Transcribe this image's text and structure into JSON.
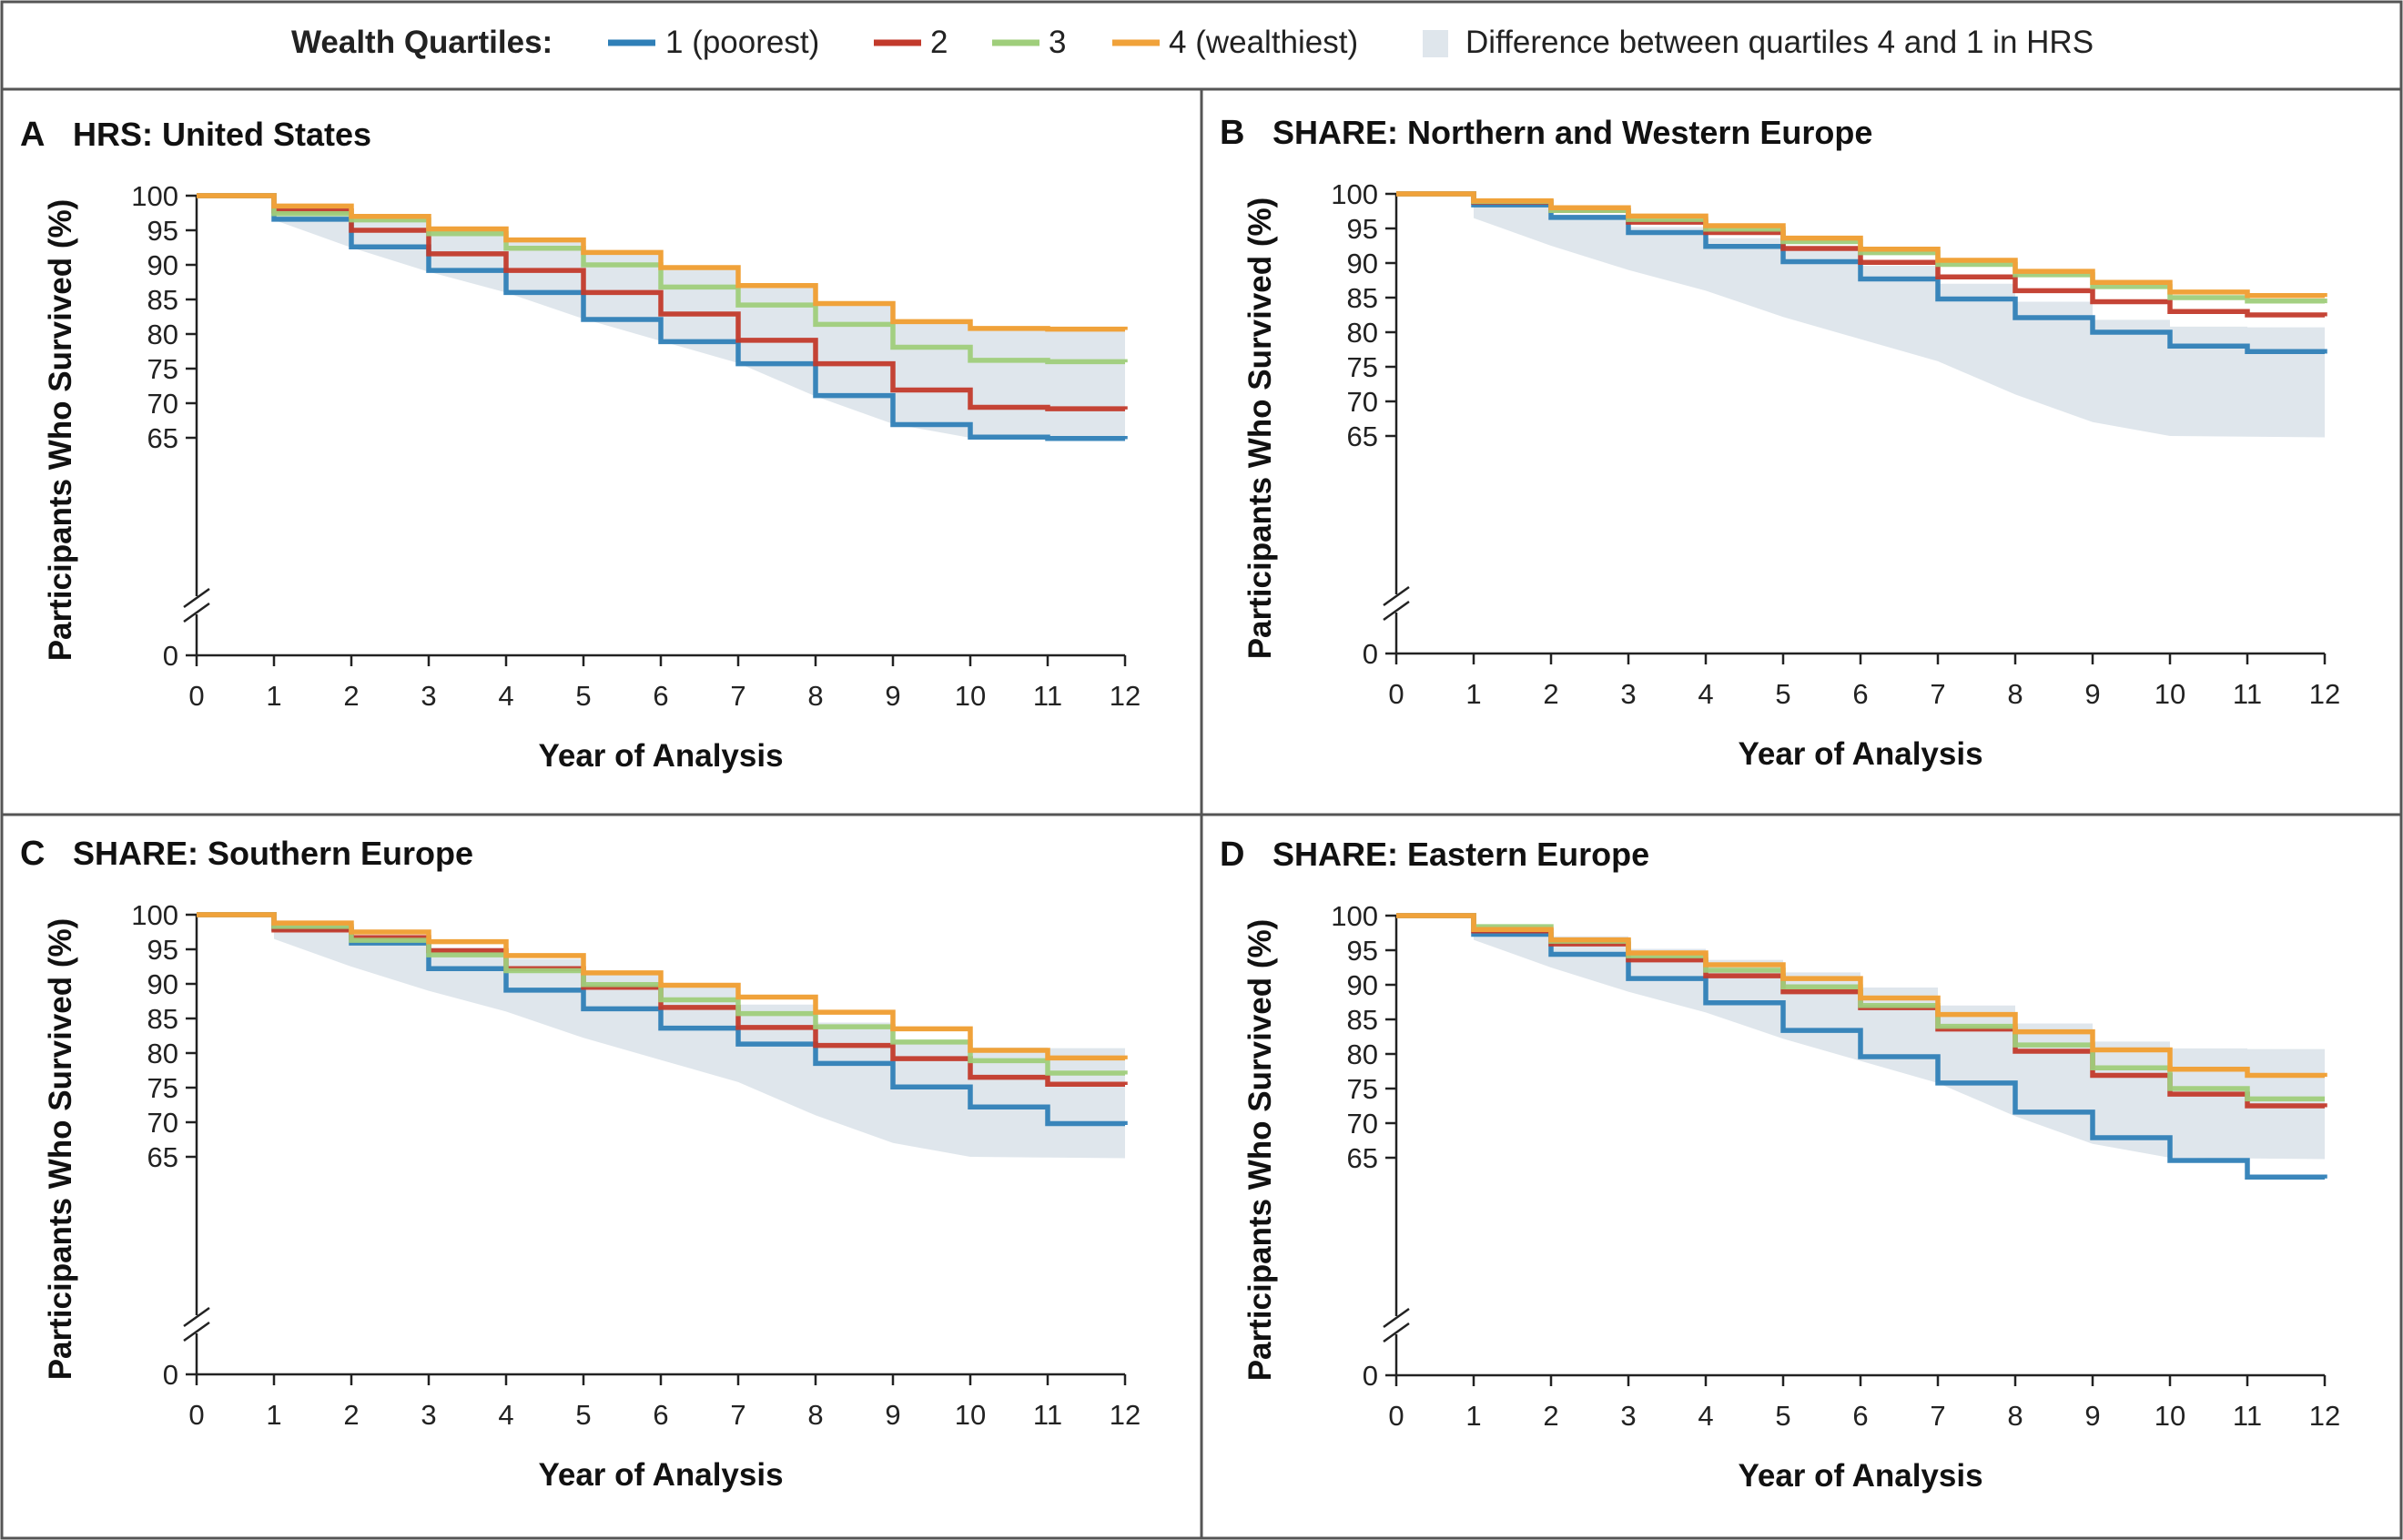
{
  "legend": {
    "title": "Wealth Quartiles:",
    "items": [
      {
        "label": "1 (poorest)",
        "color": "#2f7fb7"
      },
      {
        "label": "2",
        "color": "#c23a2b"
      },
      {
        "label": "3",
        "color": "#9fce7b"
      },
      {
        "label": "4 (wealthiest)",
        "color": "#f0a23a"
      }
    ],
    "band_label": "Difference between quartiles 4 and 1 in HRS",
    "band_color": "#dfe6ec"
  },
  "chart_data": [
    {
      "type": "line",
      "step": true,
      "letter": "A",
      "title": "HRS: United States",
      "xlabel": "Year of Analysis",
      "ylabel": "Participants Who Survived (%)",
      "x_ticks": [
        0,
        1,
        2,
        3,
        4,
        5,
        6,
        7,
        8,
        9,
        10,
        11,
        12
      ],
      "y_ticks": [
        0,
        65,
        70,
        75,
        80,
        85,
        90,
        95,
        100
      ],
      "xlim": [
        0,
        12
      ],
      "ylim_broken": [
        65,
        100
      ],
      "x": [
        0,
        1,
        2,
        3,
        4,
        5,
        6,
        7,
        8,
        9,
        10,
        11,
        12
      ],
      "band": {
        "upper": [
          100,
          98.5,
          97,
          95.2,
          93.6,
          91.8,
          89.6,
          87,
          84.4,
          81.8,
          80.8,
          80.7,
          80.6
        ],
        "lower": [
          100,
          96.5,
          92.5,
          89,
          86,
          82.2,
          79,
          75.8,
          71,
          67,
          65,
          64.9,
          64.8
        ]
      },
      "series": [
        {
          "name": "1 (poorest)",
          "values": [
            100,
            96.6,
            92.6,
            89.2,
            86,
            82.1,
            78.9,
            75.7,
            71.1,
            66.9,
            65.1,
            64.9,
            64.8
          ]
        },
        {
          "name": "2",
          "values": [
            100,
            97.8,
            95,
            91.6,
            89.2,
            86,
            82.9,
            79.1,
            75.7,
            71.9,
            69.4,
            69.2,
            69.1
          ]
        },
        {
          "name": "3",
          "values": [
            100,
            97.4,
            96.5,
            94.5,
            92.4,
            90,
            86.8,
            84.2,
            81.4,
            78.1,
            76.2,
            76.0,
            75.9
          ]
        },
        {
          "name": "4 (wealthiest)",
          "values": [
            100,
            98.5,
            97,
            95.2,
            93.6,
            91.8,
            89.6,
            87,
            84.4,
            81.8,
            80.8,
            80.7,
            80.6
          ]
        }
      ]
    },
    {
      "type": "line",
      "step": true,
      "letter": "B",
      "title": "SHARE: Northern and Western Europe",
      "xlabel": "Year of Analysis",
      "ylabel": "Participants Who Survived (%)",
      "x_ticks": [
        0,
        1,
        2,
        3,
        4,
        5,
        6,
        7,
        8,
        9,
        10,
        11,
        12
      ],
      "y_ticks": [
        0,
        65,
        70,
        75,
        80,
        85,
        90,
        95,
        100
      ],
      "xlim": [
        0,
        12
      ],
      "ylim_broken": [
        65,
        100
      ],
      "x": [
        0,
        1,
        2,
        3,
        4,
        5,
        6,
        7,
        8,
        9,
        10,
        11,
        12
      ],
      "band": {
        "upper": [
          100,
          98.5,
          97,
          95.2,
          93.6,
          91.8,
          89.6,
          87,
          84.4,
          81.8,
          80.8,
          80.7,
          80.6
        ],
        "lower": [
          100,
          96.5,
          92.5,
          89,
          86,
          82.2,
          79,
          75.8,
          71,
          67,
          65,
          64.9,
          64.8
        ]
      },
      "series": [
        {
          "name": "1 (poorest)",
          "values": [
            100,
            98.4,
            96.6,
            94.4,
            92.4,
            90.2,
            87.7,
            84.8,
            82.1,
            80,
            78,
            77.2,
            76.9
          ]
        },
        {
          "name": "2",
          "values": [
            100,
            98.8,
            97.6,
            95.9,
            94.4,
            92.1,
            90.1,
            88,
            86,
            84.4,
            83,
            82.5,
            82.3
          ]
        },
        {
          "name": "3",
          "values": [
            100,
            98.9,
            97.6,
            96.3,
            94.9,
            93.1,
            91.5,
            89.8,
            88.3,
            86.6,
            85,
            84.5,
            84.2
          ]
        },
        {
          "name": "4 (wealthiest)",
          "values": [
            100,
            99,
            98,
            96.8,
            95.4,
            93.6,
            92,
            90.4,
            88.8,
            87.2,
            85.8,
            85.3,
            85.1
          ]
        }
      ]
    },
    {
      "type": "line",
      "step": true,
      "letter": "C",
      "title": "SHARE: Southern Europe",
      "xlabel": "Year of Analysis",
      "ylabel": "Participants Who Survived (%)",
      "x_ticks": [
        0,
        1,
        2,
        3,
        4,
        5,
        6,
        7,
        8,
        9,
        10,
        11,
        12
      ],
      "y_ticks": [
        0,
        65,
        70,
        75,
        80,
        85,
        90,
        95,
        100
      ],
      "xlim": [
        0,
        12
      ],
      "ylim_broken": [
        65,
        100
      ],
      "x": [
        0,
        1,
        2,
        3,
        4,
        5,
        6,
        7,
        8,
        9,
        10,
        11,
        12
      ],
      "band": {
        "upper": [
          100,
          98.5,
          97,
          95.2,
          93.6,
          91.8,
          89.6,
          87,
          84.4,
          81.8,
          80.8,
          80.7,
          80.6
        ],
        "lower": [
          100,
          96.5,
          92.5,
          89,
          86,
          82.2,
          79,
          75.8,
          71,
          67,
          65,
          64.9,
          64.8
        ]
      },
      "series": [
        {
          "name": "1 (poorest)",
          "values": [
            100,
            98,
            95.9,
            92.2,
            89.1,
            86.4,
            83.6,
            81.3,
            78.5,
            75.1,
            72.2,
            69.8,
            69.6
          ]
        },
        {
          "name": "2",
          "values": [
            100,
            97.8,
            96.7,
            94.8,
            92.2,
            89.5,
            86.6,
            83.7,
            81.1,
            79.2,
            76.5,
            75.5,
            75.4
          ]
        },
        {
          "name": "3",
          "values": [
            100,
            98.3,
            96.3,
            94.2,
            91.9,
            89.9,
            87.7,
            85.7,
            83.8,
            81.6,
            78.9,
            77.1,
            76.9
          ]
        },
        {
          "name": "4 (wealthiest)",
          "values": [
            100,
            98.8,
            97.5,
            96.1,
            94.1,
            91.6,
            89.8,
            88.1,
            85.9,
            83.5,
            80.4,
            79.3,
            79.1
          ]
        }
      ]
    },
    {
      "type": "line",
      "step": true,
      "letter": "D",
      "title": "SHARE: Eastern Europe",
      "xlabel": "Year of Analysis",
      "ylabel": "Participants Who Survived (%)",
      "x_ticks": [
        0,
        1,
        2,
        3,
        4,
        5,
        6,
        7,
        8,
        9,
        10,
        11,
        12
      ],
      "y_ticks": [
        0,
        65,
        70,
        75,
        80,
        85,
        90,
        95,
        100
      ],
      "xlim": [
        0,
        12
      ],
      "ylim_broken": [
        65,
        100
      ],
      "x": [
        0,
        1,
        2,
        3,
        4,
        5,
        6,
        7,
        8,
        9,
        10,
        11,
        12
      ],
      "band": {
        "upper": [
          100,
          98.5,
          97,
          95.2,
          93.6,
          91.8,
          89.6,
          87,
          84.4,
          81.8,
          80.8,
          80.7,
          80.6
        ],
        "lower": [
          100,
          96.5,
          92.5,
          89,
          86,
          82.2,
          79,
          75.8,
          71,
          67,
          65,
          64.9,
          64.8
        ]
      },
      "series": [
        {
          "name": "1 (poorest)",
          "values": [
            100,
            97.3,
            94.4,
            90.9,
            87.4,
            83.4,
            79.6,
            75.8,
            71.6,
            67.9,
            64.6,
            62.2,
            62
          ]
        },
        {
          "name": "2",
          "values": [
            100,
            97.8,
            95.9,
            93.6,
            91.3,
            89,
            86.7,
            83.6,
            80.4,
            76.9,
            74.2,
            72.5,
            72.3
          ]
        },
        {
          "name": "3",
          "values": [
            100,
            98.4,
            96.3,
            94.2,
            92.1,
            89.7,
            87,
            84,
            81.3,
            78,
            75,
            73.5,
            73.5
          ]
        },
        {
          "name": "4 (wealthiest)",
          "values": [
            100,
            98,
            96.5,
            94.6,
            92.9,
            90.9,
            88.1,
            85.7,
            83.2,
            80.6,
            77.8,
            76.9,
            76.7
          ]
        }
      ]
    }
  ]
}
